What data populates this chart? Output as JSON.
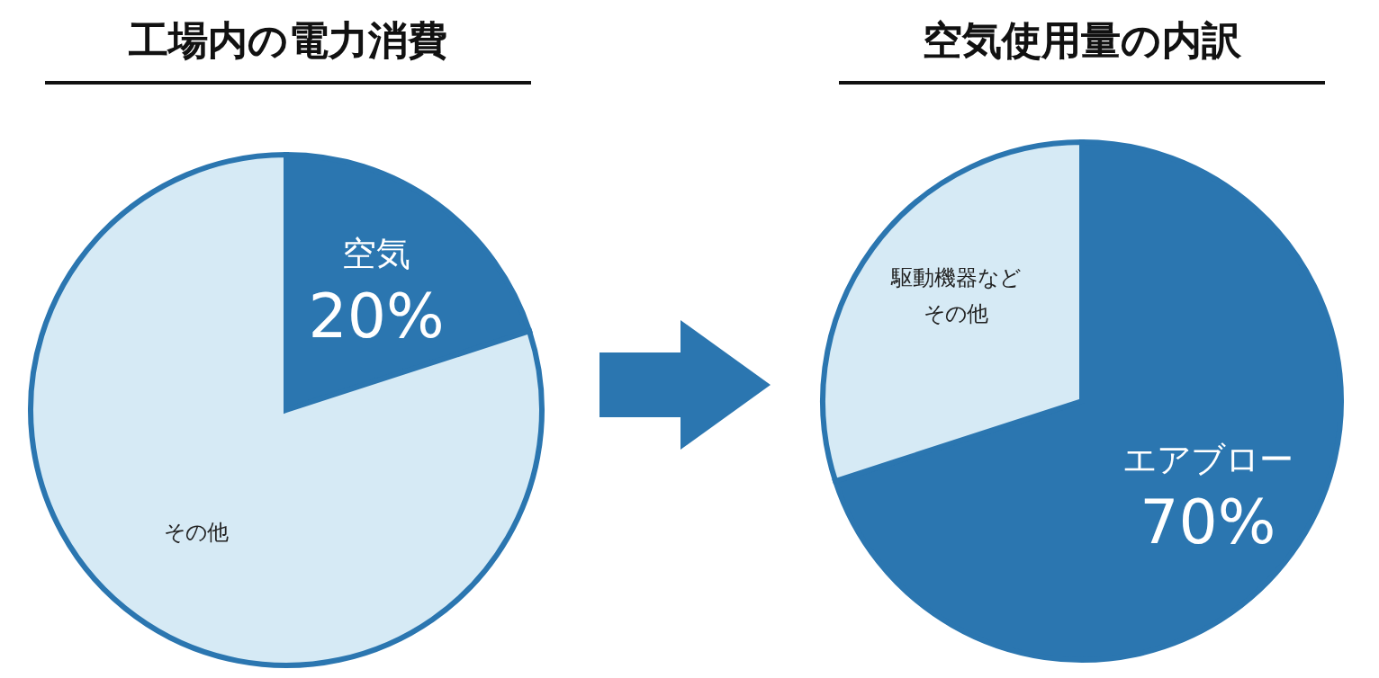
{
  "chart_data": [
    {
      "type": "pie",
      "title": "工場内の電力消費",
      "categories": [
        "空気",
        "その他"
      ],
      "values": [
        20,
        80
      ],
      "colors": [
        "#2b76b0",
        "#d6eaf5"
      ],
      "value_labels": [
        "20%",
        null
      ]
    },
    {
      "type": "pie",
      "title": "空気使用量の内訳",
      "categories": [
        "エアブロー",
        "駆動機器などその他"
      ],
      "values": [
        70,
        30
      ],
      "colors": [
        "#2b76b0",
        "#d6eaf5"
      ],
      "value_labels": [
        "70%",
        null
      ]
    }
  ]
}
